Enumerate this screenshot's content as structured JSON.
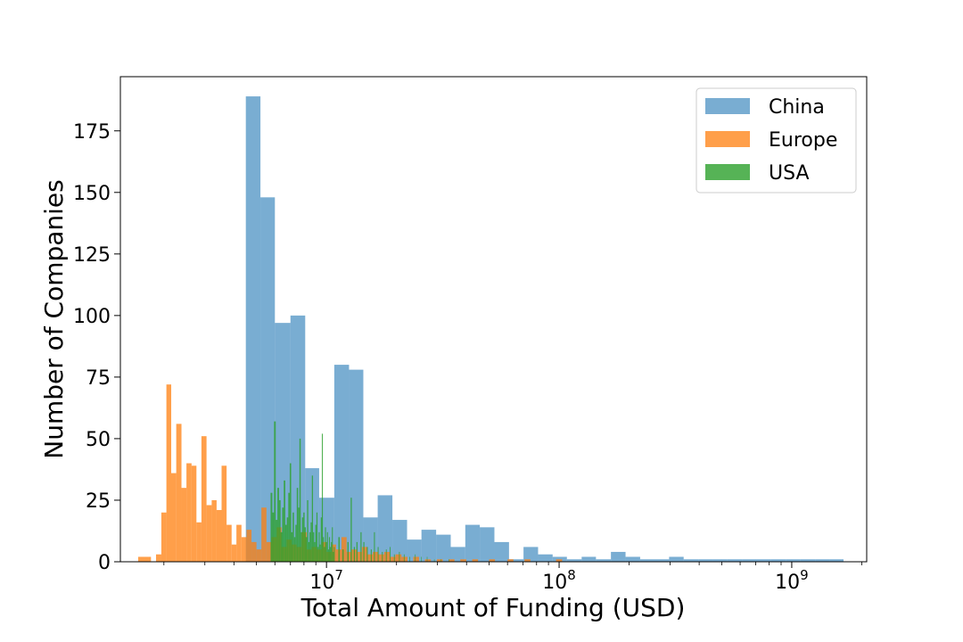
{
  "chart_data": {
    "type": "bar",
    "subtype": "histogram",
    "xscale": "log",
    "xlabel": "Total Amount of Funding (USD)",
    "ylabel": "Number of Companies",
    "xlim": [
      1300000,
      2100000000
    ],
    "ylim": [
      0,
      197
    ],
    "xticks": [
      {
        "value": 10000000,
        "base": "10",
        "exp": "7"
      },
      {
        "value": 100000000,
        "base": "10",
        "exp": "8"
      },
      {
        "value": 1000000000,
        "base": "10",
        "exp": "9"
      }
    ],
    "yticks": [
      0,
      25,
      50,
      75,
      100,
      125,
      150,
      175
    ],
    "grid": false,
    "legend": {
      "placement": "top-right"
    },
    "series": [
      {
        "name": "China",
        "color": "#1f77b4",
        "opacity": 0.6,
        "bins": [
          [
            4500000,
            5200000,
            189
          ],
          [
            5200000,
            6000000,
            148
          ],
          [
            6000000,
            7000000,
            97
          ],
          [
            7000000,
            8100000,
            100
          ],
          [
            8100000,
            9300000,
            38
          ],
          [
            9300000,
            10800000,
            26
          ],
          [
            10800000,
            12500000,
            80
          ],
          [
            12500000,
            14400000,
            78
          ],
          [
            14400000,
            16600000,
            18
          ],
          [
            16600000,
            19200000,
            27
          ],
          [
            19200000,
            22200000,
            17
          ],
          [
            22200000,
            25600000,
            9
          ],
          [
            25600000,
            29600000,
            13
          ],
          [
            29600000,
            34200000,
            11
          ],
          [
            34200000,
            39500000,
            6
          ],
          [
            39500000,
            45600000,
            15
          ],
          [
            45600000,
            52700000,
            14
          ],
          [
            52700000,
            60900000,
            8
          ],
          [
            60900000,
            70300000,
            1
          ],
          [
            70300000,
            81200000,
            6
          ],
          [
            81200000,
            93800000,
            3
          ],
          [
            93800000,
            108000000,
            2
          ],
          [
            108000000,
            125000000,
            1
          ],
          [
            125000000,
            144000000,
            2
          ],
          [
            144000000,
            167000000,
            1
          ],
          [
            167000000,
            193000000,
            4
          ],
          [
            193000000,
            223000000,
            2
          ],
          [
            223000000,
            257000000,
            1
          ],
          [
            257000000,
            297000000,
            1
          ],
          [
            297000000,
            343000000,
            2
          ],
          [
            343000000,
            397000000,
            1
          ],
          [
            397000000,
            458000000,
            1
          ],
          [
            458000000,
            529000000,
            1
          ],
          [
            529000000,
            611000000,
            1
          ],
          [
            611000000,
            706000000,
            1
          ],
          [
            706000000,
            815000000,
            1
          ],
          [
            815000000,
            942000000,
            1
          ],
          [
            942000000,
            1090000000,
            1
          ],
          [
            1090000000,
            1260000000,
            1
          ],
          [
            1260000000,
            1450000000,
            1
          ],
          [
            1450000000,
            1670000000,
            1
          ]
        ]
      },
      {
        "name": "Europe",
        "color": "#ff7f0e",
        "opacity": 0.75,
        "bins": [
          [
            1550000,
            1650000,
            2
          ],
          [
            1650000,
            1760000,
            2
          ],
          [
            1850000,
            1950000,
            3
          ],
          [
            1950000,
            2050000,
            20
          ],
          [
            2050000,
            2150000,
            72
          ],
          [
            2150000,
            2260000,
            36
          ],
          [
            2260000,
            2380000,
            56
          ],
          [
            2380000,
            2500000,
            30
          ],
          [
            2500000,
            2630000,
            40
          ],
          [
            2630000,
            2760000,
            39
          ],
          [
            2760000,
            2900000,
            16
          ],
          [
            2900000,
            3050000,
            51
          ],
          [
            3050000,
            3210000,
            23
          ],
          [
            3210000,
            3370000,
            25
          ],
          [
            3370000,
            3540000,
            21
          ],
          [
            3540000,
            3720000,
            39
          ],
          [
            3720000,
            3910000,
            15
          ],
          [
            3910000,
            4100000,
            7
          ],
          [
            4100000,
            4310000,
            15
          ],
          [
            4310000,
            4530000,
            10
          ],
          [
            4530000,
            4760000,
            13
          ],
          [
            4760000,
            5000000,
            8
          ],
          [
            5000000,
            5250000,
            5
          ],
          [
            5250000,
            5520000,
            22
          ],
          [
            5520000,
            5800000,
            8
          ],
          [
            5800000,
            6100000,
            10
          ],
          [
            6100000,
            6410000,
            14
          ],
          [
            6410000,
            6740000,
            6
          ],
          [
            6740000,
            7080000,
            9
          ],
          [
            7080000,
            7440000,
            7
          ],
          [
            7440000,
            7820000,
            6
          ],
          [
            7820000,
            8220000,
            12
          ],
          [
            8220000,
            8640000,
            5
          ],
          [
            8640000,
            9080000,
            6
          ],
          [
            9080000,
            9540000,
            5
          ],
          [
            9540000,
            10000000,
            8
          ],
          [
            10000000,
            10500000,
            4
          ],
          [
            10500000,
            11000000,
            7
          ],
          [
            11000000,
            11600000,
            5
          ],
          [
            11600000,
            12200000,
            10
          ],
          [
            12200000,
            12800000,
            4
          ],
          [
            12800000,
            13500000,
            5
          ],
          [
            13500000,
            14200000,
            4
          ],
          [
            14200000,
            15000000,
            6
          ],
          [
            15000000,
            15800000,
            3
          ],
          [
            15800000,
            16700000,
            4
          ],
          [
            16700000,
            17700000,
            3
          ],
          [
            17700000,
            18700000,
            4
          ],
          [
            18700000,
            19800000,
            2
          ],
          [
            19800000,
            21000000,
            3
          ],
          [
            21000000,
            22300000,
            2
          ],
          [
            23600000,
            25000000,
            2
          ],
          [
            26500000,
            28100000,
            1
          ],
          [
            29800000,
            31600000,
            1
          ],
          [
            33500000,
            35500000,
            1
          ],
          [
            37600000,
            39900000,
            1
          ],
          [
            42300000,
            44800000,
            1
          ],
          [
            50000000,
            53000000,
            1
          ],
          [
            60000000,
            63600000,
            1
          ],
          [
            71000000,
            75300000,
            1
          ],
          [
            97000000,
            103000000,
            1
          ]
        ]
      },
      {
        "name": "USA",
        "color": "#2ca02c",
        "opacity": 0.8,
        "bins": [
          [
            5750000,
            5850000,
            28
          ],
          [
            5850000,
            5950000,
            20
          ],
          [
            5950000,
            6050000,
            57
          ],
          [
            6050000,
            6150000,
            17
          ],
          [
            6150000,
            6250000,
            30
          ],
          [
            6250000,
            6350000,
            25
          ],
          [
            6350000,
            6450000,
            12
          ],
          [
            6450000,
            6550000,
            22
          ],
          [
            6550000,
            6650000,
            33
          ],
          [
            6650000,
            6750000,
            15
          ],
          [
            6750000,
            6850000,
            18
          ],
          [
            6850000,
            6950000,
            28
          ],
          [
            6950000,
            7050000,
            40
          ],
          [
            7050000,
            7150000,
            12
          ],
          [
            7150000,
            7250000,
            20
          ],
          [
            7250000,
            7350000,
            10
          ],
          [
            7350000,
            7450000,
            15
          ],
          [
            7450000,
            7550000,
            30
          ],
          [
            7550000,
            7650000,
            22
          ],
          [
            7650000,
            7750000,
            50
          ],
          [
            7750000,
            7850000,
            12
          ],
          [
            7850000,
            7950000,
            18
          ],
          [
            7950000,
            8050000,
            20
          ],
          [
            8050000,
            8150000,
            14
          ],
          [
            8150000,
            8250000,
            10
          ],
          [
            8250000,
            8350000,
            25
          ],
          [
            8350000,
            8450000,
            8
          ],
          [
            8450000,
            8550000,
            12
          ],
          [
            8550000,
            8650000,
            16
          ],
          [
            8650000,
            8750000,
            35
          ],
          [
            8750000,
            8850000,
            12
          ],
          [
            8850000,
            8950000,
            8
          ],
          [
            8950000,
            9050000,
            15
          ],
          [
            9050000,
            9150000,
            20
          ],
          [
            9150000,
            9250000,
            6
          ],
          [
            9250000,
            9350000,
            12
          ],
          [
            9350000,
            9450000,
            7
          ],
          [
            9450000,
            9550000,
            18
          ],
          [
            9550000,
            9650000,
            52
          ],
          [
            9650000,
            9750000,
            10
          ],
          [
            9750000,
            9850000,
            6
          ],
          [
            9850000,
            9950000,
            14
          ],
          [
            9950000,
            10050000,
            8
          ],
          [
            10050000,
            10150000,
            12
          ],
          [
            10150000,
            10250000,
            5
          ],
          [
            10250000,
            10350000,
            10
          ],
          [
            10350000,
            10450000,
            6
          ],
          [
            10450000,
            10550000,
            8
          ],
          [
            10550000,
            10650000,
            14
          ],
          [
            10650000,
            10750000,
            4
          ],
          [
            10750000,
            10850000,
            6
          ],
          [
            11250000,
            11400000,
            10
          ],
          [
            11700000,
            11850000,
            5
          ],
          [
            12300000,
            12450000,
            8
          ],
          [
            12700000,
            12850000,
            26
          ],
          [
            13100000,
            13250000,
            6
          ],
          [
            13450000,
            13600000,
            8
          ],
          [
            14000000,
            14150000,
            12
          ],
          [
            14400000,
            14550000,
            8
          ],
          [
            14900000,
            15050000,
            6
          ],
          [
            15500000,
            15650000,
            5
          ],
          [
            16000000,
            16150000,
            12
          ],
          [
            16600000,
            16750000,
            6
          ],
          [
            17300000,
            17450000,
            4
          ],
          [
            18000000,
            18150000,
            5
          ],
          [
            18700000,
            18850000,
            6
          ],
          [
            19500000,
            19650000,
            3
          ],
          [
            20500000,
            20650000,
            4
          ],
          [
            21500000,
            21650000,
            3
          ],
          [
            22700000,
            22850000,
            2
          ],
          [
            24000000,
            24150000,
            3
          ],
          [
            25500000,
            25650000,
            2
          ],
          [
            27000000,
            27150000,
            2
          ],
          [
            29000000,
            29150000,
            1
          ],
          [
            31000000,
            31150000,
            1
          ],
          [
            33500000,
            33650000,
            1
          ]
        ]
      }
    ]
  }
}
